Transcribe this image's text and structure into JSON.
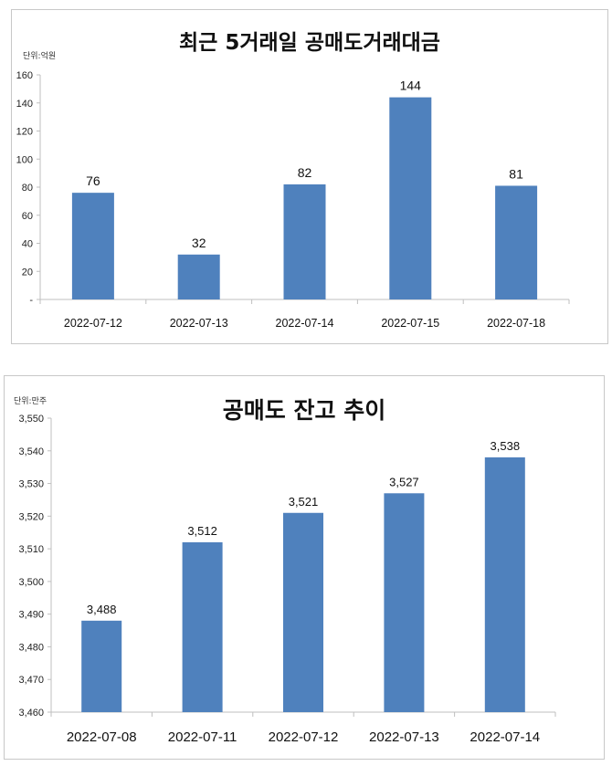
{
  "chart_data": [
    {
      "type": "bar",
      "title": "최근 5거래일 공매도거래대금",
      "unit_label": "단위:억원",
      "xlabel": "",
      "ylabel": "단위:억원",
      "categories": [
        "2022-07-12",
        "2022-07-13",
        "2022-07-14",
        "2022-07-15",
        "2022-07-18"
      ],
      "values": [
        76,
        32,
        82,
        144,
        81
      ],
      "value_labels": [
        "76",
        "32",
        "82",
        "144",
        "81"
      ],
      "ylim": [
        0,
        160
      ],
      "yticks": [
        0,
        20,
        40,
        60,
        80,
        100,
        120,
        140,
        160
      ],
      "ytick_labels": [
        "-",
        "20",
        "40",
        "60",
        "80",
        "100",
        "120",
        "140",
        "160"
      ],
      "grid": false,
      "legend": "none",
      "bar_color": "#4f81bd"
    },
    {
      "type": "bar",
      "title": "공매도 잔고 추이",
      "unit_label": "단위:만주",
      "xlabel": "",
      "ylabel": "단위:만주",
      "categories": [
        "2022-07-08",
        "2022-07-11",
        "2022-07-12",
        "2022-07-13",
        "2022-07-14"
      ],
      "values": [
        3488,
        3512,
        3521,
        3527,
        3538
      ],
      "value_labels": [
        "3,488",
        "3,512",
        "3,521",
        "3,527",
        "3,538"
      ],
      "ylim": [
        3460,
        3550
      ],
      "yticks": [
        3460,
        3470,
        3480,
        3490,
        3500,
        3510,
        3520,
        3530,
        3540,
        3550
      ],
      "ytick_labels": [
        "3,460",
        "3,470",
        "3,480",
        "3,490",
        "3,500",
        "3,510",
        "3,520",
        "3,530",
        "3,540",
        "3,550"
      ],
      "grid": false,
      "legend": "none",
      "bar_color": "#4f81bd"
    }
  ]
}
